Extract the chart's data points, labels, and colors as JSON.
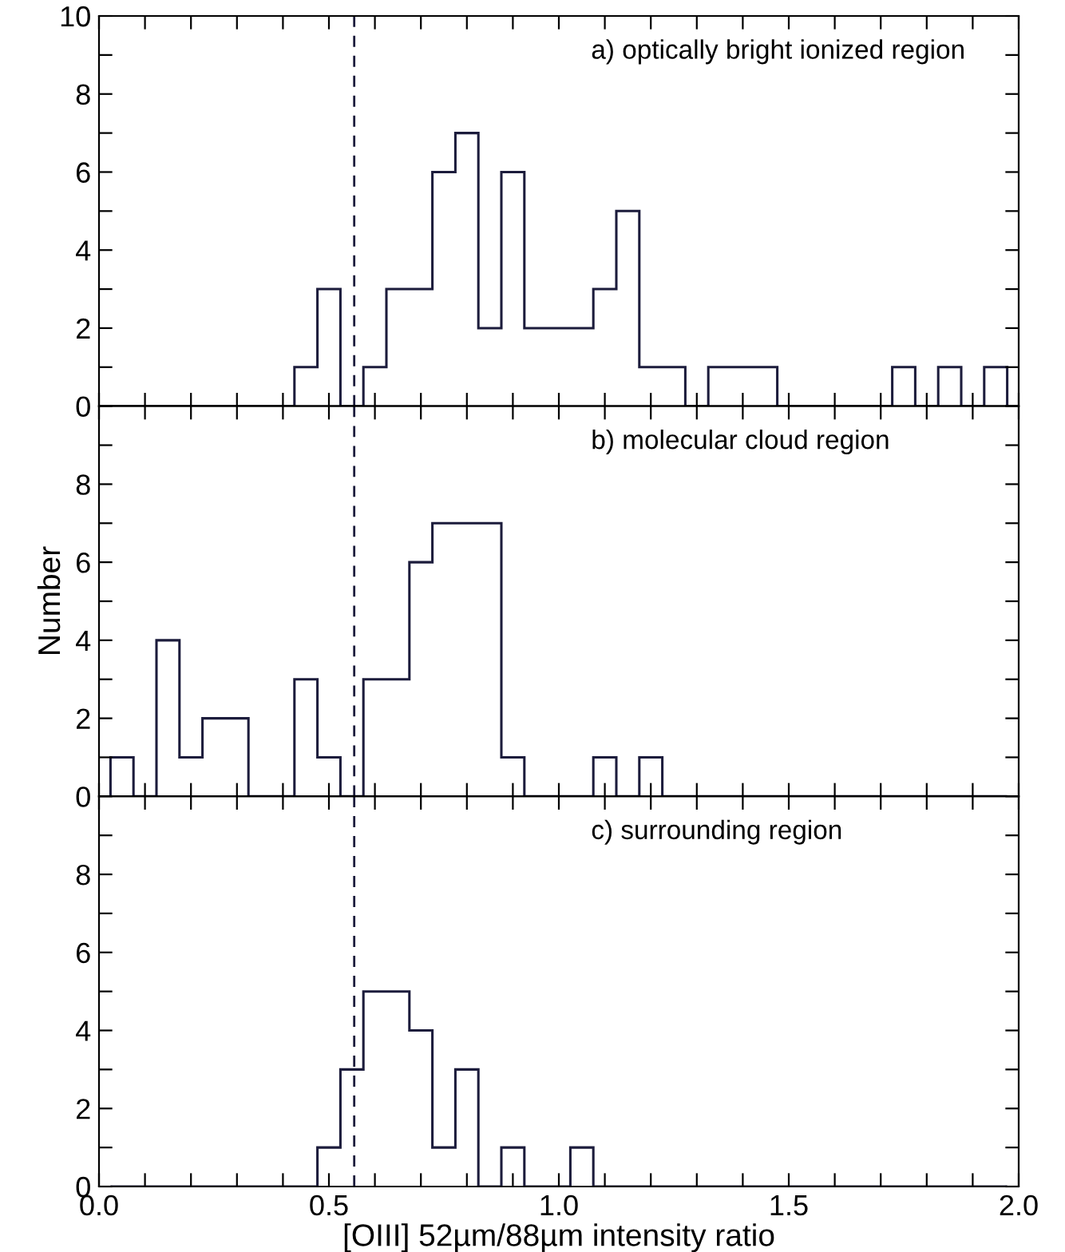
{
  "chart_data": [
    {
      "type": "histogram",
      "bins": [
        0.025,
        0.075,
        0.125,
        0.175,
        0.225,
        0.275,
        0.325,
        0.375,
        0.425,
        0.475,
        0.525,
        0.575,
        0.625,
        0.675,
        0.725,
        0.775,
        0.825,
        0.875,
        0.925,
        0.975,
        1.025,
        1.075,
        1.125,
        1.175,
        1.225,
        1.275,
        1.325,
        1.375,
        1.425,
        1.475,
        1.525,
        1.575,
        1.625,
        1.675,
        1.725,
        1.775,
        1.825,
        1.875,
        1.925,
        1.975
      ],
      "values": [
        0,
        0,
        0,
        0,
        0,
        0,
        0,
        0,
        1,
        3,
        0,
        1,
        3,
        3,
        6,
        7,
        2,
        6,
        2,
        2,
        2,
        3,
        5,
        1,
        1,
        0,
        1,
        1,
        1,
        0,
        0,
        0,
        0,
        0,
        1,
        0,
        1,
        0,
        1
      ],
      "color": "#1c1c3c",
      "xlim": [
        0.0,
        2.0
      ],
      "ylim": [
        0,
        10
      ],
      "xticks": [
        {
          "value": 0.0,
          "label": null
        },
        {
          "value": 0.1,
          "label": null
        },
        {
          "value": 0.2,
          "label": null
        },
        {
          "value": 0.3,
          "label": null
        },
        {
          "value": 0.4,
          "label": null
        },
        {
          "value": 0.5,
          "label": null
        },
        {
          "value": 0.6,
          "label": null
        },
        {
          "value": 0.7,
          "label": null
        },
        {
          "value": 0.8,
          "label": null
        },
        {
          "value": 0.9,
          "label": null
        },
        {
          "value": 1.0,
          "label": null
        },
        {
          "value": 1.1,
          "label": null
        },
        {
          "value": 1.2,
          "label": null
        },
        {
          "value": 1.3,
          "label": null
        },
        {
          "value": 1.4,
          "label": null
        },
        {
          "value": 1.5,
          "label": null
        },
        {
          "value": 1.6,
          "label": null
        },
        {
          "value": 1.7,
          "label": null
        },
        {
          "value": 1.8,
          "label": null
        },
        {
          "value": 1.9,
          "label": null
        },
        {
          "value": 2.0,
          "label": null
        }
      ],
      "yticks": [
        0,
        {
          "value": 1,
          "label": null
        },
        2,
        {
          "value": 3,
          "label": null
        },
        4,
        {
          "value": 5,
          "label": null
        },
        6,
        {
          "value": 7,
          "label": null
        },
        8,
        {
          "value": 9,
          "label": null
        },
        10
      ],
      "tick_labels": "y",
      "grid": false,
      "ref_lines": [
        {
          "axis": "x",
          "value": 0.555,
          "label": null,
          "color": "#1c1c3c",
          "line_style": "dashed"
        }
      ],
      "annotations": [
        "a) optically bright ionized region"
      ]
    },
    {
      "type": "histogram",
      "bins": [
        0.025,
        0.075,
        0.125,
        0.175,
        0.225,
        0.275,
        0.325,
        0.375,
        0.425,
        0.475,
        0.525,
        0.575,
        0.625,
        0.675,
        0.725,
        0.775,
        0.825,
        0.875,
        0.925,
        0.975,
        1.025,
        1.075,
        1.125,
        1.175,
        1.225,
        1.275,
        1.325,
        1.375,
        1.425,
        1.475,
        1.525,
        1.575,
        1.625,
        1.675,
        1.725,
        1.775,
        1.825,
        1.875,
        1.925,
        1.975
      ],
      "values": [
        1,
        0,
        4,
        1,
        2,
        2,
        0,
        0,
        3,
        1,
        0,
        3,
        3,
        6,
        7,
        7,
        7,
        1,
        0,
        0,
        0,
        1,
        0,
        1,
        0,
        0,
        0,
        0,
        0,
        0,
        0,
        0,
        0,
        0,
        0,
        0,
        0,
        0,
        0
      ],
      "color": "#1c1c3c",
      "xlim": [
        0.0,
        2.0
      ],
      "ylim": [
        0,
        10
      ],
      "xticks": [
        {
          "value": 0.0,
          "label": null
        },
        {
          "value": 0.1,
          "label": null
        },
        {
          "value": 0.2,
          "label": null
        },
        {
          "value": 0.3,
          "label": null
        },
        {
          "value": 0.4,
          "label": null
        },
        {
          "value": 0.5,
          "label": null
        },
        {
          "value": 0.6,
          "label": null
        },
        {
          "value": 0.7,
          "label": null
        },
        {
          "value": 0.8,
          "label": null
        },
        {
          "value": 0.9,
          "label": null
        },
        {
          "value": 1.0,
          "label": null
        },
        {
          "value": 1.1,
          "label": null
        },
        {
          "value": 1.2,
          "label": null
        },
        {
          "value": 1.3,
          "label": null
        },
        {
          "value": 1.4,
          "label": null
        },
        {
          "value": 1.5,
          "label": null
        },
        {
          "value": 1.6,
          "label": null
        },
        {
          "value": 1.7,
          "label": null
        },
        {
          "value": 1.8,
          "label": null
        },
        {
          "value": 1.9,
          "label": null
        },
        {
          "value": 2.0,
          "label": null
        }
      ],
      "yticks": [
        0,
        {
          "value": 1,
          "label": null
        },
        2,
        {
          "value": 3,
          "label": null
        },
        4,
        {
          "value": 5,
          "label": null
        },
        6,
        {
          "value": 7,
          "label": null
        },
        8,
        {
          "value": 9,
          "label": null
        },
        {
          "value": 10,
          "label": null
        }
      ],
      "tick_labels": "y",
      "grid": false,
      "ylabel": "Number",
      "ref_lines": [
        {
          "axis": "x",
          "value": 0.555,
          "label": null,
          "color": "#1c1c3c",
          "line_style": "dashed"
        }
      ],
      "annotations": [
        "b) molecular cloud region"
      ]
    },
    {
      "type": "histogram",
      "bins": [
        0.025,
        0.075,
        0.125,
        0.175,
        0.225,
        0.275,
        0.325,
        0.375,
        0.425,
        0.475,
        0.525,
        0.575,
        0.625,
        0.675,
        0.725,
        0.775,
        0.825,
        0.875,
        0.925,
        0.975,
        1.025,
        1.075,
        1.125,
        1.175,
        1.225,
        1.275,
        1.325,
        1.375,
        1.425,
        1.475,
        1.525,
        1.575,
        1.625,
        1.675,
        1.725,
        1.775,
        1.825,
        1.875,
        1.925,
        1.975
      ],
      "values": [
        0,
        0,
        0,
        0,
        0,
        0,
        0,
        0,
        0,
        1,
        3,
        5,
        5,
        4,
        1,
        3,
        0,
        1,
        0,
        0,
        1,
        0,
        0,
        0,
        0,
        0,
        0,
        0,
        0,
        0,
        0,
        0,
        0,
        0,
        0,
        0,
        0,
        0,
        0
      ],
      "color": "#1c1c3c",
      "xlim": [
        0.0,
        2.0
      ],
      "ylim": [
        0,
        10
      ],
      "xticks": [
        {
          "value": 0.0,
          "label": "0.0"
        },
        {
          "value": 0.1,
          "label": null
        },
        {
          "value": 0.2,
          "label": null
        },
        {
          "value": 0.3,
          "label": null
        },
        {
          "value": 0.4,
          "label": null
        },
        0.5,
        {
          "value": 0.6,
          "label": null
        },
        {
          "value": 0.7,
          "label": null
        },
        {
          "value": 0.8,
          "label": null
        },
        {
          "value": 0.9,
          "label": null
        },
        {
          "value": 1.0,
          "label": "1.0"
        },
        {
          "value": 1.1,
          "label": null
        },
        {
          "value": 1.2,
          "label": null
        },
        {
          "value": 1.3,
          "label": null
        },
        {
          "value": 1.4,
          "label": null
        },
        1.5,
        {
          "value": 1.6,
          "label": null
        },
        {
          "value": 1.7,
          "label": null
        },
        {
          "value": 1.8,
          "label": null
        },
        {
          "value": 1.9,
          "label": null
        },
        {
          "value": 2.0,
          "label": "2.0"
        }
      ],
      "yticks": [
        0,
        {
          "value": 1,
          "label": null
        },
        2,
        {
          "value": 3,
          "label": null
        },
        4,
        {
          "value": 5,
          "label": null
        },
        6,
        {
          "value": 7,
          "label": null
        },
        8,
        {
          "value": 9,
          "label": null
        },
        {
          "value": 10,
          "label": null
        }
      ],
      "grid": false,
      "xlabel": "[OIII] 52µm/88µm intensity ratio",
      "ref_lines": [
        {
          "axis": "x",
          "value": 0.555,
          "label": null,
          "color": "#1c1c3c",
          "line_style": "dashed"
        }
      ],
      "annotations": [
        "c) surrounding region"
      ]
    }
  ]
}
